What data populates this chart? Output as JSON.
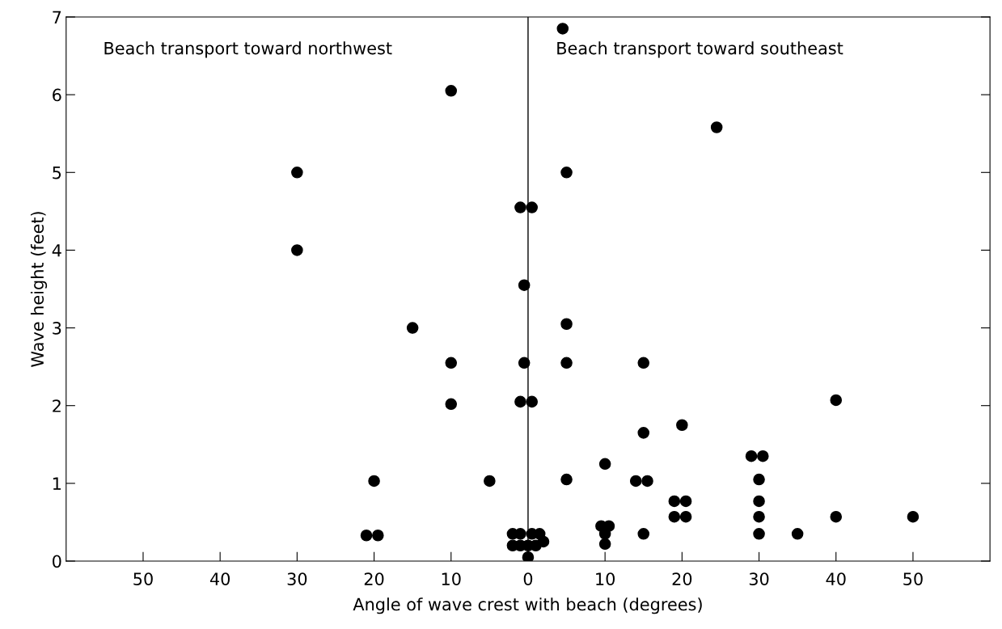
{
  "chart_data": {
    "type": "scatter",
    "xlabel": "Angle of wave crest with beach (degrees)",
    "ylabel": "Wave height (feet)",
    "annotations": [
      "Beach transport toward northwest",
      "Beach transport toward southeast"
    ],
    "x": [
      -30,
      -30,
      -15,
      -10,
      -10,
      -10,
      -20,
      -21,
      -19.5,
      -5,
      -2,
      -2,
      -1,
      -1,
      0,
      0,
      0.5,
      1,
      1.5,
      2,
      -1,
      0.5,
      -0.5,
      -0.5,
      -1,
      0.5,
      4.5,
      5,
      5,
      5,
      5,
      9.5,
      10.5,
      10,
      10,
      10,
      14,
      15.5,
      15,
      15,
      15,
      19,
      20.5,
      19,
      20.5,
      20,
      24.5,
      29,
      30.5,
      30,
      30,
      30,
      30,
      35,
      40,
      40,
      50
    ],
    "series": [
      {
        "color": "#000000",
        "values": [
          5,
          4,
          3,
          2.55,
          2.02,
          6.05,
          1.03,
          0.33,
          0.33,
          1.03,
          0.2,
          0.35,
          0.35,
          0.2,
          0.05,
          0.2,
          0.35,
          0.2,
          0.35,
          0.25,
          4.55,
          4.55,
          3.55,
          2.55,
          2.05,
          2.05,
          6.85,
          5,
          3.05,
          2.55,
          1.05,
          0.45,
          0.45,
          0.35,
          0.22,
          1.25,
          1.03,
          1.03,
          2.55,
          1.65,
          0.35,
          0.77,
          0.77,
          0.57,
          0.57,
          1.75,
          5.58,
          1.35,
          1.35,
          1.05,
          0.77,
          0.57,
          0.35,
          0.35,
          2.07,
          0.57,
          0.57
        ]
      }
    ],
    "xlim": [
      -60,
      60
    ],
    "xticks": [
      {
        "value": -50,
        "label": "50"
      },
      {
        "value": -40,
        "label": "40"
      },
      {
        "value": -30,
        "label": "30"
      },
      {
        "value": -20,
        "label": "20"
      },
      {
        "value": -10,
        "label": "10"
      },
      0,
      10,
      20,
      30,
      40,
      50
    ],
    "ylim": [
      0,
      7
    ],
    "yticks": [
      0,
      1,
      2,
      3,
      4,
      5,
      6,
      7
    ],
    "ref_lines": [
      {
        "axis": "x",
        "value": 0,
        "color": "#000000"
      }
    ],
    "marker": "circle",
    "grid": false,
    "legend": false
  }
}
